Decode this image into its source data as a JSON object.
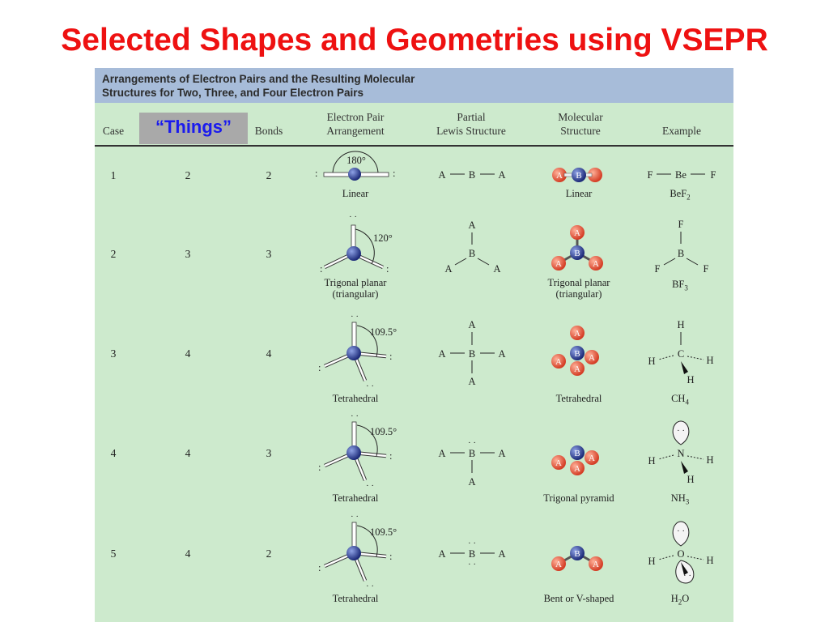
{
  "title": "Selected Shapes and Geometries using VSEPR",
  "caption": {
    "line1": "Arrangements of Electron Pairs and the Resulting Molecular",
    "line2": "Structures for Two, Three, and Four Electron Pairs"
  },
  "headers": {
    "case": "Case",
    "things": "“Things”",
    "bonds": "Bonds",
    "arrangement_1": "Electron Pair",
    "arrangement_2": "Arrangement",
    "lewis_1": "Partial",
    "lewis_2": "Lewis Structure",
    "molecular_1": "Molecular",
    "molecular_2": "Structure",
    "example": "Example"
  },
  "rows": [
    {
      "case": "1",
      "things": "2",
      "bonds": "2",
      "arrangement": "Linear",
      "angle": "180°",
      "molecular": "Linear",
      "example_formula": "BeF2"
    },
    {
      "case": "2",
      "things": "3",
      "bonds": "3",
      "arrangement": "Trigonal planar (triangular)",
      "angle": "120°",
      "molecular": "Trigonal planar (triangular)",
      "example_formula": "BF3"
    },
    {
      "case": "3",
      "things": "4",
      "bonds": "4",
      "arrangement": "Tetrahedral",
      "angle": "109.5°",
      "molecular": "Tetrahedral",
      "example_formula": "CH4"
    },
    {
      "case": "4",
      "things": "4",
      "bonds": "3",
      "arrangement": "Tetrahedral",
      "angle": "109.5°",
      "molecular": "Trigonal pyramid",
      "example_formula": "NH3"
    },
    {
      "case": "5",
      "things": "4",
      "bonds": "2",
      "arrangement": "Tetrahedral",
      "angle": "109.5°",
      "molecular": "Bent or V-shaped",
      "example_formula": "H2O"
    }
  ],
  "atoms": {
    "A": "A",
    "B": "B",
    "F": "F",
    "Be": "Be",
    "H": "H",
    "C": "C",
    "N": "N",
    "O": "O"
  },
  "colors": {
    "title": "#ee1111",
    "things": "#1a1aee",
    "table_bg": "#cdeacd",
    "caption_bg": "#a7bcd9",
    "atom_a": "#e8553f",
    "atom_b": "#2f3e9e"
  }
}
